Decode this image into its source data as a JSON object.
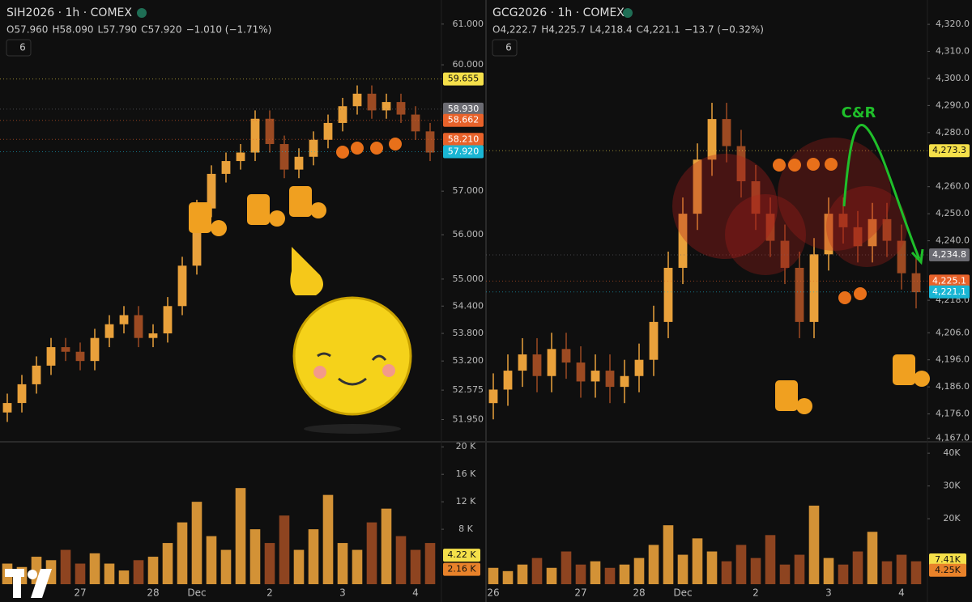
{
  "chart_data": [
    {
      "type": "candlestick",
      "title": "SIH2026 · 1h · COMEX",
      "header": [
        "O",
        "57.960",
        "H",
        "58.090",
        "L",
        "57.790",
        "C",
        "57.920",
        "−1.010 (−1.71%)"
      ],
      "interval": "6",
      "log_scale": true,
      "ylim": [
        51.5,
        61.6
      ],
      "yticks": [
        {
          "value": 61,
          "label": "61.000"
        },
        {
          "value": 60,
          "label": "60.000"
        },
        {
          "value": 57,
          "label": "57.000"
        },
        {
          "value": 56,
          "label": "56.000"
        },
        {
          "value": 55,
          "label": "55.000"
        },
        {
          "value": 54.4,
          "label": "54.400"
        },
        {
          "value": 53.8,
          "label": "53.800"
        },
        {
          "value": 53.2,
          "label": "53.200"
        },
        {
          "value": 52.575,
          "label": "52.575"
        },
        {
          "value": 51.95,
          "label": "51.950"
        }
      ],
      "price_labels": [
        {
          "value": 59.655,
          "label": "59.655",
          "color": "#f5e04a"
        },
        {
          "value": 58.93,
          "label": "58.930",
          "color": "#6b6b72"
        },
        {
          "value": 58.662,
          "label": "58.662",
          "color": "#e8622a"
        },
        {
          "value": 58.21,
          "label": "58.210",
          "color": "#e8622a"
        },
        {
          "value": 57.92,
          "label": "57.920",
          "color": "#1ab6d4"
        }
      ],
      "categories": [
        null,
        null,
        null,
        null,
        null,
        "27",
        null,
        null,
        null,
        null,
        "28",
        null,
        null,
        "Dec",
        null,
        null,
        null,
        null,
        "2",
        null,
        null,
        null,
        null,
        "3",
        null,
        null,
        null,
        null,
        "4",
        null
      ],
      "open": [
        52.1,
        52.3,
        52.7,
        53.1,
        53.5,
        53.4,
        53.2,
        53.7,
        54.0,
        54.2,
        53.7,
        53.8,
        54.4,
        55.3,
        56.6,
        57.4,
        57.7,
        57.9,
        58.7,
        58.1,
        57.5,
        57.8,
        58.2,
        58.6,
        59.0,
        59.3,
        58.9,
        59.1,
        58.8,
        58.4
      ],
      "high": [
        52.5,
        52.9,
        53.3,
        53.7,
        53.7,
        53.6,
        53.9,
        54.2,
        54.4,
        54.4,
        54.0,
        54.6,
        55.5,
        56.8,
        57.6,
        57.9,
        58.1,
        58.9,
        58.9,
        58.3,
        58.0,
        58.4,
        58.8,
        59.2,
        59.5,
        59.5,
        59.3,
        59.3,
        59.0,
        58.6
      ],
      "low": [
        51.9,
        52.1,
        52.5,
        52.9,
        53.2,
        53.0,
        53.0,
        53.5,
        53.8,
        53.5,
        53.5,
        53.6,
        54.2,
        55.1,
        56.4,
        57.2,
        57.5,
        57.7,
        57.9,
        57.3,
        57.3,
        57.6,
        58.0,
        58.4,
        58.8,
        58.7,
        58.7,
        58.6,
        58.2,
        57.7
      ],
      "close": [
        52.3,
        52.7,
        53.1,
        53.5,
        53.4,
        53.2,
        53.7,
        54.0,
        54.2,
        53.7,
        53.8,
        54.4,
        55.3,
        56.6,
        57.4,
        57.7,
        57.9,
        58.7,
        58.1,
        57.5,
        57.8,
        58.2,
        58.6,
        59.0,
        59.3,
        58.9,
        59.1,
        58.8,
        58.4,
        57.9
      ],
      "up_color": "#e9a13b",
      "down_color": "#9c4a22",
      "volume": [
        3000,
        2500,
        4000,
        3500,
        5000,
        3000,
        4500,
        3000,
        2000,
        3500,
        4000,
        6000,
        9000,
        12000,
        7000,
        5000,
        14000,
        8000,
        6000,
        10000,
        5000,
        8000,
        13000,
        6000,
        5000,
        9000,
        11000,
        7000,
        5000,
        6000
      ],
      "vol_ylim": [
        0,
        20500
      ],
      "vol_yticks": [
        {
          "value": 20000,
          "label": "20 K"
        },
        {
          "value": 16000,
          "label": "16 K"
        },
        {
          "value": 12000,
          "label": "12 K"
        },
        {
          "value": 8000,
          "label": "8 K"
        }
      ],
      "vol_labels": [
        {
          "value": 4220,
          "label": "4.22 K",
          "color": "#f5e04a"
        },
        {
          "value": 2160,
          "label": "2.16 K",
          "color": "#e8822a"
        }
      ]
    },
    {
      "type": "candlestick",
      "title": "GCG2026 · 1h · COMEX",
      "header": [
        "O",
        "4,222.7",
        "H",
        "4,225.7",
        "L",
        "4,218.4",
        "C",
        "4,221.1",
        "−13.7 (−0.32%)"
      ],
      "interval": "6",
      "log_scale": false,
      "ylim": [
        4166,
        4329
      ],
      "yticks": [
        {
          "value": 4320,
          "label": "4,320.0"
        },
        {
          "value": 4310,
          "label": "4,310.0"
        },
        {
          "value": 4300,
          "label": "4,300.0"
        },
        {
          "value": 4290,
          "label": "4,290.0"
        },
        {
          "value": 4280,
          "label": "4,280.0"
        },
        {
          "value": 4260,
          "label": "4,260.0"
        },
        {
          "value": 4250,
          "label": "4,250.0"
        },
        {
          "value": 4240,
          "label": "4,240.0"
        },
        {
          "value": 4218,
          "label": "4,218.0"
        },
        {
          "value": 4206,
          "label": "4,206.0"
        },
        {
          "value": 4196,
          "label": "4,196.0"
        },
        {
          "value": 4186,
          "label": "4,186.0"
        },
        {
          "value": 4176,
          "label": "4,176.0"
        },
        {
          "value": 4167,
          "label": "4,167.0"
        }
      ],
      "price_labels": [
        {
          "value": 4273.3,
          "label": "4,273.3",
          "color": "#f5e04a"
        },
        {
          "value": 4234.8,
          "label": "4,234.8",
          "color": "#6b6b72"
        },
        {
          "value": 4225.1,
          "label": "4,225.1",
          "color": "#e8622a"
        },
        {
          "value": 4221.1,
          "label": "4,221.1",
          "color": "#1ab6d4"
        }
      ],
      "annotation": "C&R",
      "categories": [
        "26",
        null,
        null,
        null,
        null,
        null,
        "27",
        null,
        null,
        null,
        "28",
        null,
        null,
        "Dec",
        null,
        null,
        null,
        null,
        "2",
        null,
        null,
        null,
        null,
        "3",
        null,
        null,
        null,
        null,
        "4",
        null
      ],
      "open": [
        4180,
        4185,
        4192,
        4198,
        4190,
        4200,
        4195,
        4188,
        4192,
        4186,
        4190,
        4196,
        4210,
        4230,
        4250,
        4270,
        4285,
        4275,
        4262,
        4250,
        4240,
        4230,
        4210,
        4235,
        4250,
        4245,
        4238,
        4248,
        4240,
        4228
      ],
      "high": [
        4191,
        4198,
        4204,
        4204,
        4206,
        4206,
        4201,
        4198,
        4198,
        4196,
        4202,
        4216,
        4236,
        4256,
        4276,
        4291,
        4291,
        4281,
        4268,
        4256,
        4246,
        4236,
        4241,
        4256,
        4256,
        4251,
        4254,
        4254,
        4246,
        4234
      ],
      "low": [
        4174,
        4179,
        4186,
        4184,
        4184,
        4189,
        4182,
        4182,
        4180,
        4180,
        4184,
        4190,
        4204,
        4224,
        4244,
        4264,
        4269,
        4256,
        4244,
        4234,
        4224,
        4204,
        4204,
        4229,
        4239,
        4232,
        4232,
        4234,
        4222,
        4215
      ],
      "close": [
        4185,
        4192,
        4198,
        4190,
        4200,
        4195,
        4188,
        4192,
        4186,
        4190,
        4196,
        4210,
        4230,
        4250,
        4270,
        4285,
        4275,
        4262,
        4250,
        4240,
        4230,
        4210,
        4235,
        4250,
        4245,
        4238,
        4248,
        4240,
        4228,
        4221
      ],
      "up_color": "#e9a13b",
      "down_color": "#9c4a22",
      "volume": [
        5000,
        4000,
        6000,
        8000,
        5000,
        10000,
        6000,
        7000,
        5000,
        6000,
        8000,
        12000,
        18000,
        9000,
        14000,
        10000,
        7000,
        12000,
        8000,
        15000,
        6000,
        9000,
        24000,
        8000,
        6000,
        10000,
        16000,
        7000,
        9000,
        7000
      ],
      "vol_ylim": [
        0,
        43000
      ],
      "vol_yticks": [
        {
          "value": 40000,
          "label": "40K"
        },
        {
          "value": 30000,
          "label": "30K"
        },
        {
          "value": 20000,
          "label": "20K"
        }
      ],
      "vol_labels": [
        {
          "value": 7410,
          "label": "7.41K",
          "color": "#f5e04a"
        },
        {
          "value": 4250,
          "label": "4.25K",
          "color": "#e8822a"
        }
      ]
    }
  ]
}
